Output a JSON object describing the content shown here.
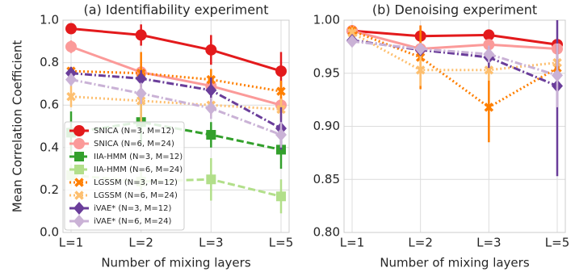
{
  "chart_data": [
    {
      "type": "line",
      "title": "(a) Identifiability experiment",
      "xlabel": "Number of mixing layers",
      "ylabel": "Mean Correlation Coefficient",
      "categories": [
        "L=1",
        "L=2",
        "L=3",
        "L=5"
      ],
      "ylim": [
        0,
        1
      ],
      "yticks": [
        {
          "value": 0,
          "label": "0.0"
        },
        0.2,
        0.4,
        0.6,
        0.8,
        {
          "value": 1,
          "label": "1.0"
        }
      ],
      "grid": true,
      "legend": "lower left",
      "series": [
        {
          "name": "SNICA (N=3, M=12)",
          "color": "#e31a1c",
          "dash": "solid",
          "marker": "circle",
          "values": [
            0.96,
            0.93,
            0.86,
            0.76
          ],
          "errors": [
            0.02,
            0.05,
            0.07,
            0.09
          ]
        },
        {
          "name": "SNICA (N=6, M=24)",
          "color": "#fb9a99",
          "dash": "solid",
          "marker": "circle",
          "values": [
            0.875,
            0.755,
            0.69,
            0.6
          ],
          "errors": [
            0.03,
            0.03,
            0.04,
            0.04
          ]
        },
        {
          "name": "IIA-HMM (N=3, M=12)",
          "color": "#33a02c",
          "dash": "dashed",
          "marker": "square",
          "values": [
            0.47,
            0.52,
            0.46,
            0.39
          ],
          "errors": [
            0.1,
            0.1,
            0.06,
            0.09
          ]
        },
        {
          "name": "IIA-HMM (N=6, M=24)",
          "color": "#b2df8a",
          "dash": "dashed",
          "marker": "square",
          "values": [
            0.27,
            0.24,
            0.25,
            0.17
          ],
          "errors": [
            0.05,
            0.05,
            0.1,
            0.08
          ]
        },
        {
          "name": "LGSSM (N=3, M=12)",
          "color": "#ff7f00",
          "dash": "dotted",
          "marker": "x",
          "values": [
            0.76,
            0.75,
            0.72,
            0.665
          ],
          "errors": [
            0.02,
            0.1,
            0.05,
            0.05
          ]
        },
        {
          "name": "LGSSM (N=6, M=24)",
          "color": "#fdbf6f",
          "dash": "dotted",
          "marker": "x",
          "values": [
            0.64,
            0.62,
            0.6,
            0.58
          ],
          "errors": [
            0.05,
            0.1,
            0.05,
            0.05
          ]
        },
        {
          "name": "iVAE* (N=3, M=12)",
          "color": "#6a3d9a",
          "dash": "dashdot",
          "marker": "diamond",
          "values": [
            0.75,
            0.725,
            0.67,
            0.49
          ],
          "errors": [
            0.03,
            0.04,
            0.06,
            0.1
          ]
        },
        {
          "name": "iVAE* (N=6, M=24)",
          "color": "#cab2d6",
          "dash": "dashdot",
          "marker": "diamond",
          "values": [
            0.72,
            0.655,
            0.585,
            0.46
          ],
          "errors": [
            0.03,
            0.05,
            0.05,
            0.06
          ]
        }
      ]
    },
    {
      "type": "line",
      "title": "(b) Denoising experiment",
      "xlabel": "Number of mixing layers",
      "categories": [
        "L=1",
        "L=2",
        "L=3",
        "L=5"
      ],
      "ylim": [
        0.8,
        1
      ],
      "yticks": [
        {
          "value": 0.8,
          "label": "0.80"
        },
        0.85,
        {
          "value": 0.9,
          "label": "0.90"
        },
        0.95,
        {
          "value": 1,
          "label": "1.00"
        }
      ],
      "grid": true,
      "series": [
        {
          "name": "SNICA (N=3, M=12)",
          "color": "#e31a1c",
          "dash": "solid",
          "marker": "circle",
          "values": [
            0.99,
            0.985,
            0.986,
            0.977
          ],
          "errors": [
            0.002,
            0.01,
            0.005,
            0.005
          ]
        },
        {
          "name": "SNICA (N=6, M=24)",
          "color": "#fb9a99",
          "dash": "solid",
          "marker": "circle",
          "values": [
            0.99,
            0.973,
            0.977,
            0.973
          ],
          "errors": [
            0.002,
            0.005,
            0.005,
            0.005
          ]
        },
        {
          "name": "LGSSM (N=3, M=12)",
          "color": "#ff7f00",
          "dash": "dotted",
          "marker": "x",
          "values": [
            0.99,
            0.965,
            0.918,
            0.955
          ],
          "errors": [
            0.005,
            0.03,
            0.033,
            0.01
          ]
        },
        {
          "name": "LGSSM (N=6, M=24)",
          "color": "#fdbf6f",
          "dash": "dotted",
          "marker": "x",
          "values": [
            0.988,
            0.953,
            0.953,
            0.96
          ],
          "errors": [
            0.005,
            0.015,
            0.01,
            0.01
          ]
        },
        {
          "name": "iVAE* (N=3, M=12)",
          "color": "#6a3d9a",
          "dash": "dashdot",
          "marker": "diamond",
          "values": [
            0.981,
            0.972,
            0.965,
            0.938
          ],
          "errors": [
            0.003,
            0.005,
            0.01,
            0.085
          ]
        },
        {
          "name": "iVAE* (N=6, M=24)",
          "color": "#cab2d6",
          "dash": "dashdot",
          "marker": "diamond",
          "values": [
            0.98,
            0.973,
            0.968,
            0.948
          ],
          "errors": [
            0.003,
            0.005,
            0.008,
            0.03
          ]
        }
      ]
    }
  ]
}
